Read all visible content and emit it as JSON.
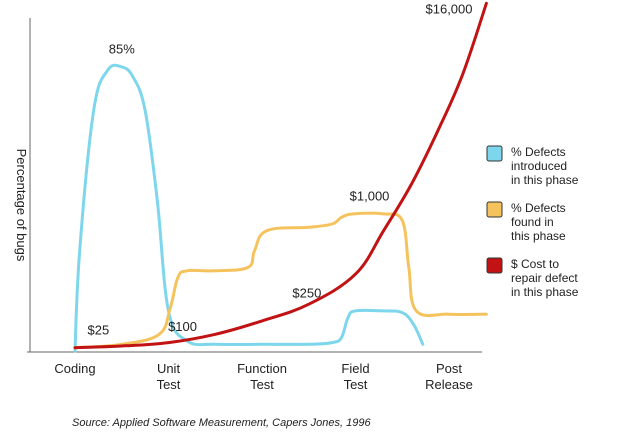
{
  "chart_data": {
    "type": "line",
    "title": "",
    "xlabel": "",
    "ylabel": "Percentage of bugs",
    "categories": [
      "Coding",
      "Unit\nTest",
      "Function\nTest",
      "Field\nTest",
      "Post\nRelease"
    ],
    "grid": false,
    "legend_position": "right",
    "series": [
      {
        "name": "% Defects\nintroduced\nin this phase",
        "color": "#7ed6ec",
        "x": [
          0,
          0.05,
          0.2,
          0.35,
          0.5,
          0.62,
          0.75,
          0.88,
          1.0,
          1.2,
          1.5,
          2.0,
          2.5,
          2.75,
          2.85,
          2.92,
          3.0,
          3.3,
          3.5,
          3.62,
          3.72
        ],
        "values": [
          0,
          30,
          72,
          84,
          85,
          82,
          72,
          45,
          12,
          3,
          2,
          2,
          2,
          2.5,
          4,
          10,
          12,
          12,
          11.5,
          8,
          2
        ]
      },
      {
        "name": "% Defects\nfound in\nthis phase",
        "color": "#f5c35e",
        "x": [
          0,
          0.5,
          0.9,
          1.02,
          1.1,
          1.2,
          1.5,
          1.85,
          1.92,
          2.05,
          2.5,
          2.75,
          2.85,
          2.98,
          3.3,
          3.5,
          3.57,
          3.65,
          4.0,
          4.4
        ],
        "values": [
          1,
          2,
          5,
          13,
          22,
          24,
          24,
          25,
          30,
          36,
          37,
          38,
          40,
          41,
          41,
          39,
          25,
          12,
          11,
          11
        ]
      },
      {
        "name": "$ Cost to\nrepair defect\nin this phase",
        "color": "#c11313",
        "x": [
          0,
          0.5,
          1.0,
          1.5,
          2.0,
          2.5,
          3.0,
          3.3,
          3.6,
          3.9,
          4.15,
          4.4
        ],
        "values": [
          1,
          1.5,
          2.5,
          5,
          9,
          14,
          23,
          36,
          50,
          67,
          83,
          104
        ]
      }
    ],
    "annotations": [
      {
        "text": "85%",
        "x": 0.5,
        "y": 89
      },
      {
        "text": "$25",
        "x": 0.25,
        "y": 5
      },
      {
        "text": "$100",
        "x": 1.15,
        "y": 6
      },
      {
        "text": "$250",
        "x": 2.48,
        "y": 16
      },
      {
        "text": "$1,000",
        "x": 3.15,
        "y": 45
      },
      {
        "text": "$16,000",
        "x": 4.0,
        "y": 101
      }
    ],
    "xlim": [
      -0.3,
      4.5
    ],
    "ylim": [
      0,
      105
    ],
    "source": "Source: Applied Software Measurement, Capers Jones, 1996"
  }
}
